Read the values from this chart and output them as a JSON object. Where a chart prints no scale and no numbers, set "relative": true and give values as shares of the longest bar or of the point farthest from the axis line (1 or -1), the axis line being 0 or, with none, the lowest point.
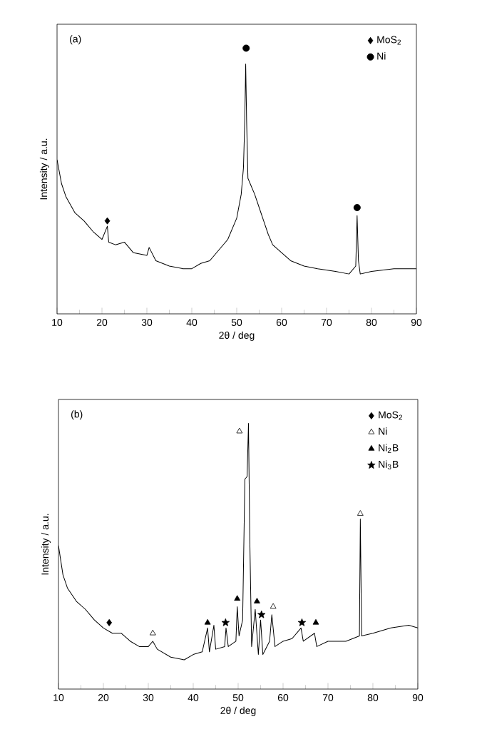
{
  "chart_data": [
    {
      "type": "line",
      "relative": true,
      "xlabel": "2θ / deg",
      "ylabel": "Intensity / a.u.",
      "annotations": [
        "(a)"
      ],
      "xlim": [
        10,
        90
      ],
      "xticks": [
        10,
        20,
        30,
        40,
        50,
        60,
        70,
        80,
        90
      ],
      "legend": "top right",
      "series": [
        {
          "color": "#000000",
          "x": [
            10,
            11,
            12,
            14,
            16,
            18,
            20,
            21.2,
            21.5,
            23,
            25,
            27,
            30,
            30.5,
            32,
            35,
            38,
            40,
            42,
            44,
            46,
            48,
            50,
            51,
            51.5,
            51.8,
            52.0,
            52.2,
            52.5,
            53,
            54,
            55,
            56,
            57,
            58,
            60,
            62,
            65,
            68,
            72,
            75,
            76.5,
            76.8,
            77.1,
            77.5,
            80,
            85,
            90
          ],
          "values": [
            0.58,
            0.49,
            0.44,
            0.38,
            0.35,
            0.31,
            0.28,
            0.33,
            0.27,
            0.26,
            0.27,
            0.23,
            0.22,
            0.25,
            0.2,
            0.18,
            0.17,
            0.17,
            0.19,
            0.2,
            0.24,
            0.28,
            0.36,
            0.45,
            0.55,
            0.73,
            0.94,
            0.73,
            0.51,
            0.49,
            0.45,
            0.4,
            0.35,
            0.3,
            0.26,
            0.23,
            0.2,
            0.18,
            0.17,
            0.16,
            0.15,
            0.18,
            0.37,
            0.2,
            0.15,
            0.16,
            0.17,
            0.17
          ]
        },
        {
          "type": "scatter",
          "name": "MoS$_{2}$",
          "color": "#000000",
          "marker": "diamond",
          "x": [
            21.2
          ],
          "values": [
            0.35
          ]
        },
        {
          "type": "scatter",
          "name": "Ni",
          "color": "#000000",
          "marker": "circle",
          "x": [
            52.1,
            76.8
          ],
          "values": [
            1.0,
            0.4
          ]
        }
      ]
    },
    {
      "type": "line",
      "relative": true,
      "xlabel": "2θ / deg",
      "ylabel": "Intensity / a.u.",
      "annotations": [
        "(b)"
      ],
      "xlim": [
        10,
        90
      ],
      "xticks": [
        10,
        20,
        30,
        40,
        50,
        60,
        70,
        80,
        90
      ],
      "legend": "top right",
      "series": [
        {
          "color": "#000000",
          "x": [
            10,
            11,
            12,
            14,
            16,
            18,
            20,
            22,
            24,
            26,
            28,
            30,
            31,
            32,
            35,
            38,
            40,
            42,
            43.2,
            43.6,
            44.6,
            45,
            47,
            47.3,
            47.8,
            49.5,
            49.8,
            50.2,
            51,
            51.5,
            52,
            52.3,
            52.6,
            53,
            53.8,
            54.5,
            55,
            55.5,
            57,
            57.5,
            58.2,
            60,
            62,
            64,
            64.5,
            67,
            67.5,
            70,
            74,
            77,
            77.2,
            77.5,
            80,
            84,
            88,
            90
          ],
          "values": [
            0.54,
            0.43,
            0.38,
            0.33,
            0.3,
            0.26,
            0.23,
            0.21,
            0.21,
            0.18,
            0.16,
            0.16,
            0.18,
            0.15,
            0.12,
            0.11,
            0.13,
            0.14,
            0.23,
            0.14,
            0.24,
            0.15,
            0.16,
            0.23,
            0.16,
            0.18,
            0.31,
            0.2,
            0.26,
            0.79,
            0.8,
            1.0,
            0.56,
            0.16,
            0.3,
            0.13,
            0.26,
            0.13,
            0.18,
            0.28,
            0.16,
            0.18,
            0.19,
            0.23,
            0.18,
            0.21,
            0.16,
            0.18,
            0.18,
            0.2,
            0.64,
            0.2,
            0.21,
            0.23,
            0.24,
            0.23
          ]
        },
        {
          "type": "scatter",
          "name": "MoS$_{2}$",
          "color": "#000000",
          "marker": "diamond",
          "x": [
            21.3
          ],
          "values": [
            0.25
          ]
        },
        {
          "type": "scatter",
          "name": "Ni",
          "color": "#ffffff",
          "marker": "triangle",
          "x": [
            31,
            50.3,
            57.8,
            77.2
          ],
          "values": [
            0.21,
            0.97,
            0.31,
            0.66
          ]
        },
        {
          "type": "scatter",
          "name": "Ni$_{2}$B",
          "color": "#000000",
          "marker": "triangle",
          "x": [
            43.2,
            49.8,
            54.2,
            67.3
          ],
          "values": [
            0.25,
            0.34,
            0.33,
            0.25
          ]
        },
        {
          "type": "scatter",
          "name": "Ni$_{3}$B",
          "color": "#000000",
          "marker": "star",
          "x": [
            47.2,
            55.2,
            64.2
          ],
          "values": [
            0.25,
            0.28,
            0.25
          ]
        }
      ]
    }
  ]
}
